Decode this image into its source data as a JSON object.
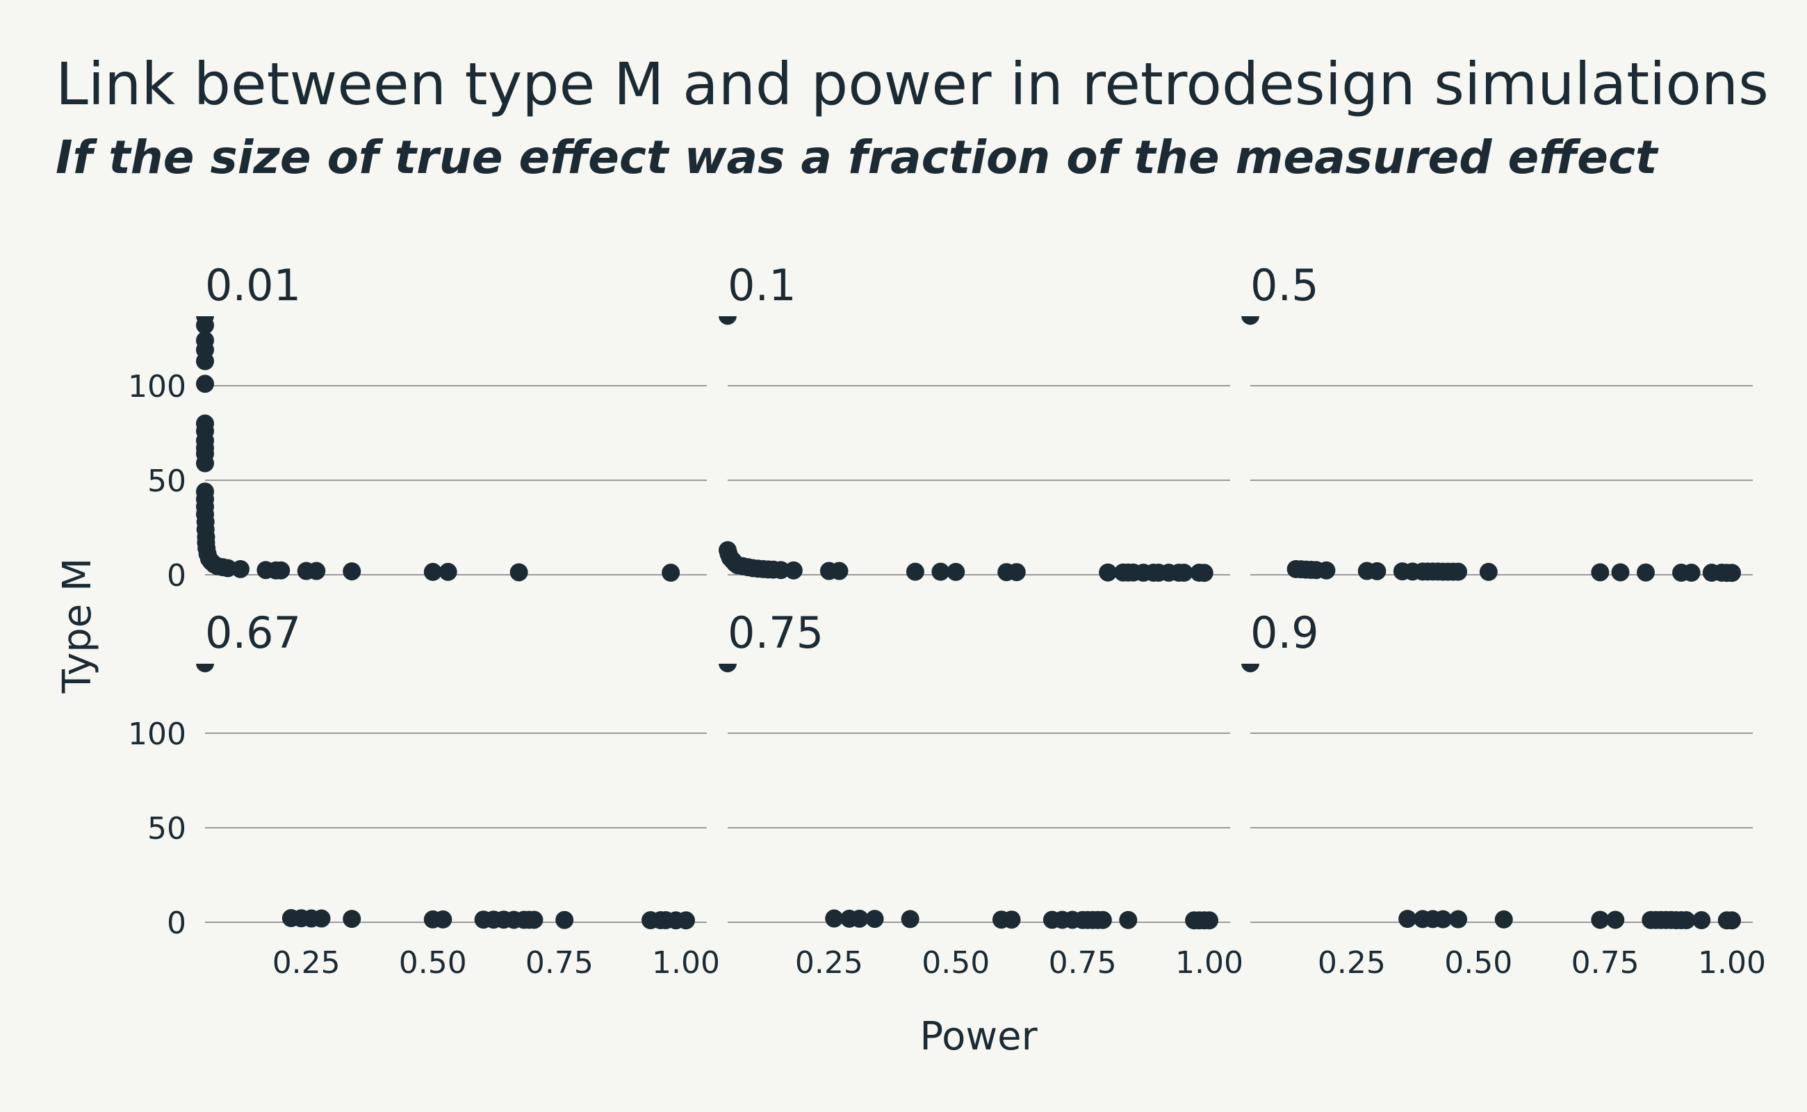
{
  "chart_data": {
    "type": "scatter",
    "title": "Link between type M and power in retrodesign simulations",
    "subtitle": "If the size of true effect was a fraction of the measured effect",
    "xlabel": "Power",
    "ylabel": "Type M",
    "xlim": [
      0.05,
      1.0
    ],
    "ylim": [
      0,
      135
    ],
    "x_ticks": [
      "0.25",
      "0.50",
      "0.75",
      "1.00"
    ],
    "x_tick_values": [
      0.25,
      0.5,
      0.75,
      1.0
    ],
    "y_ticks": [
      "0",
      "50",
      "100"
    ],
    "y_tick_values": [
      0,
      50,
      100
    ],
    "grid": "horizontal",
    "point_color": "#1c2b33",
    "facets": [
      {
        "label": "0.01",
        "points": [
          [
            0.05,
            137
          ],
          [
            0.05,
            132
          ],
          [
            0.05,
            124
          ],
          [
            0.05,
            119
          ],
          [
            0.05,
            113
          ],
          [
            0.05,
            101
          ],
          [
            0.05,
            80
          ],
          [
            0.05,
            76
          ],
          [
            0.05,
            71
          ],
          [
            0.05,
            67
          ],
          [
            0.05,
            64
          ],
          [
            0.05,
            59
          ],
          [
            0.05,
            44
          ],
          [
            0.05,
            40
          ],
          [
            0.05,
            36
          ],
          [
            0.05,
            32
          ],
          [
            0.051,
            28
          ],
          [
            0.051,
            24
          ],
          [
            0.052,
            20
          ],
          [
            0.052,
            17
          ],
          [
            0.053,
            14
          ],
          [
            0.055,
            11
          ],
          [
            0.058,
            8.5
          ],
          [
            0.062,
            7
          ],
          [
            0.068,
            5.5
          ],
          [
            0.075,
            4.5
          ],
          [
            0.085,
            4
          ],
          [
            0.095,
            3.5
          ],
          [
            0.12,
            3
          ],
          [
            0.17,
            2.5
          ],
          [
            0.19,
            2.3
          ],
          [
            0.2,
            2.3
          ],
          [
            0.25,
            2
          ],
          [
            0.27,
            2
          ],
          [
            0.34,
            1.8
          ],
          [
            0.5,
            1.5
          ],
          [
            0.53,
            1.5
          ],
          [
            0.67,
            1.3
          ],
          [
            0.97,
            1.1
          ]
        ]
      },
      {
        "label": "0.1",
        "points": [
          [
            0.05,
            137
          ],
          [
            0.05,
            13
          ],
          [
            0.052,
            11
          ],
          [
            0.055,
            9
          ],
          [
            0.06,
            7.5
          ],
          [
            0.065,
            6
          ],
          [
            0.07,
            5
          ],
          [
            0.08,
            4.5
          ],
          [
            0.09,
            4
          ],
          [
            0.1,
            3.5
          ],
          [
            0.11,
            3.2
          ],
          [
            0.12,
            3
          ],
          [
            0.13,
            2.8
          ],
          [
            0.14,
            2.7
          ],
          [
            0.155,
            2.5
          ],
          [
            0.18,
            2.3
          ],
          [
            0.25,
            2
          ],
          [
            0.27,
            2
          ],
          [
            0.42,
            1.6
          ],
          [
            0.47,
            1.6
          ],
          [
            0.5,
            1.5
          ],
          [
            0.6,
            1.4
          ],
          [
            0.62,
            1.4
          ],
          [
            0.8,
            1.2
          ],
          [
            0.83,
            1.2
          ],
          [
            0.84,
            1.2
          ],
          [
            0.85,
            1.2
          ],
          [
            0.87,
            1.1
          ],
          [
            0.89,
            1.1
          ],
          [
            0.9,
            1.1
          ],
          [
            0.92,
            1.1
          ],
          [
            0.94,
            1.1
          ],
          [
            0.95,
            1.1
          ],
          [
            0.98,
            1.1
          ],
          [
            0.99,
            1.0
          ]
        ]
      },
      {
        "label": "0.5",
        "points": [
          [
            0.05,
            137
          ],
          [
            0.14,
            3
          ],
          [
            0.15,
            2.9
          ],
          [
            0.16,
            2.7
          ],
          [
            0.17,
            2.6
          ],
          [
            0.18,
            2.5
          ],
          [
            0.2,
            2.3
          ],
          [
            0.28,
            2
          ],
          [
            0.3,
            1.9
          ],
          [
            0.35,
            1.8
          ],
          [
            0.37,
            1.7
          ],
          [
            0.39,
            1.7
          ],
          [
            0.4,
            1.7
          ],
          [
            0.41,
            1.7
          ],
          [
            0.42,
            1.7
          ],
          [
            0.43,
            1.6
          ],
          [
            0.44,
            1.6
          ],
          [
            0.45,
            1.6
          ],
          [
            0.46,
            1.6
          ],
          [
            0.52,
            1.5
          ],
          [
            0.74,
            1.3
          ],
          [
            0.78,
            1.3
          ],
          [
            0.83,
            1.2
          ],
          [
            0.9,
            1.1
          ],
          [
            0.92,
            1.1
          ],
          [
            0.96,
            1.1
          ],
          [
            0.98,
            1.1
          ],
          [
            0.99,
            1.0
          ],
          [
            1.0,
            1.0
          ]
        ]
      },
      {
        "label": "0.67",
        "points": [
          [
            0.05,
            137
          ],
          [
            0.22,
            2.2
          ],
          [
            0.24,
            2.1
          ],
          [
            0.26,
            2
          ],
          [
            0.28,
            2
          ],
          [
            0.34,
            1.8
          ],
          [
            0.5,
            1.5
          ],
          [
            0.52,
            1.5
          ],
          [
            0.6,
            1.4
          ],
          [
            0.62,
            1.4
          ],
          [
            0.64,
            1.4
          ],
          [
            0.66,
            1.3
          ],
          [
            0.68,
            1.3
          ],
          [
            0.69,
            1.3
          ],
          [
            0.7,
            1.3
          ],
          [
            0.76,
            1.2
          ],
          [
            0.93,
            1.1
          ],
          [
            0.95,
            1.1
          ],
          [
            0.96,
            1.1
          ],
          [
            0.98,
            1.0
          ],
          [
            1.0,
            1.0
          ]
        ]
      },
      {
        "label": "0.75",
        "points": [
          [
            0.05,
            137
          ],
          [
            0.26,
            2
          ],
          [
            0.29,
            1.9
          ],
          [
            0.31,
            1.9
          ],
          [
            0.34,
            1.8
          ],
          [
            0.41,
            1.7
          ],
          [
            0.59,
            1.4
          ],
          [
            0.61,
            1.4
          ],
          [
            0.69,
            1.3
          ],
          [
            0.71,
            1.3
          ],
          [
            0.73,
            1.3
          ],
          [
            0.75,
            1.2
          ],
          [
            0.76,
            1.2
          ],
          [
            0.77,
            1.2
          ],
          [
            0.78,
            1.2
          ],
          [
            0.79,
            1.2
          ],
          [
            0.84,
            1.2
          ],
          [
            0.97,
            1.0
          ],
          [
            0.98,
            1.0
          ],
          [
            0.99,
            1.0
          ],
          [
            1.0,
            1.0
          ]
        ]
      },
      {
        "label": "0.9",
        "points": [
          [
            0.05,
            137
          ],
          [
            0.36,
            1.8
          ],
          [
            0.39,
            1.7
          ],
          [
            0.41,
            1.7
          ],
          [
            0.43,
            1.6
          ],
          [
            0.46,
            1.6
          ],
          [
            0.55,
            1.5
          ],
          [
            0.74,
            1.3
          ],
          [
            0.77,
            1.3
          ],
          [
            0.84,
            1.2
          ],
          [
            0.85,
            1.2
          ],
          [
            0.86,
            1.2
          ],
          [
            0.87,
            1.2
          ],
          [
            0.88,
            1.2
          ],
          [
            0.89,
            1.1
          ],
          [
            0.9,
            1.1
          ],
          [
            0.91,
            1.1
          ],
          [
            0.94,
            1.1
          ],
          [
            0.99,
            1.0
          ],
          [
            1.0,
            1.0
          ]
        ]
      }
    ]
  }
}
